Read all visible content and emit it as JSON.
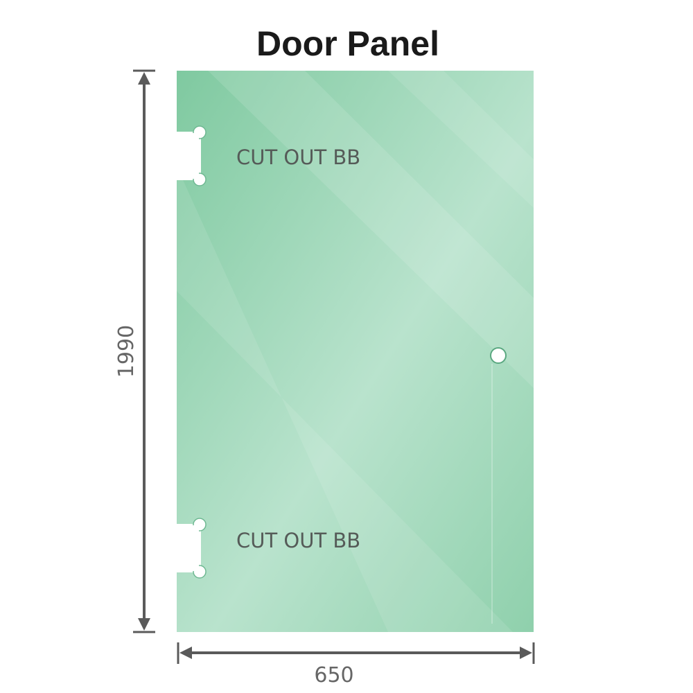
{
  "title": "Door Panel",
  "panel": {
    "glass_color": "#86cca6",
    "cutouts": [
      {
        "label": "CUT OUT BB"
      },
      {
        "label": "CUT OUT BB"
      }
    ]
  },
  "dimensions": {
    "height": "1990",
    "width": "650",
    "line_color": "#5a5a5a"
  }
}
